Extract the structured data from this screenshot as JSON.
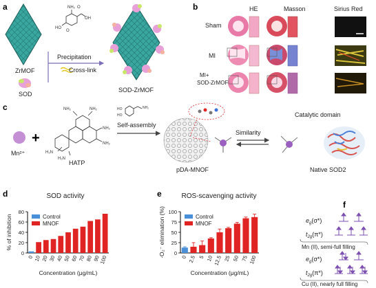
{
  "panels": {
    "a": {
      "letter": "a",
      "zrmof_label": "ZrMOF",
      "sod_label": "SOD",
      "product_label": "SOD-ZrMOF",
      "arrow_top": "Precipitation",
      "arrow_bottom": "Cross-link",
      "molecule": {
        "nh2": "NH₂",
        "oh_top": "O",
        "oh_right": "OH",
        "ho_left": "HO",
        "o_bottom": "O"
      }
    },
    "b": {
      "letter": "b",
      "columns": [
        "HE",
        "Masson",
        "Sirius Red"
      ],
      "rows": [
        "Sham",
        "MI",
        "MI+",
        "SOD-ZrMOF"
      ]
    },
    "c": {
      "letter": "c",
      "metal": "Mn²⁺",
      "plus": "+",
      "ligand": "HATP",
      "amines": [
        "NH₂",
        "NH₂",
        "NH₂",
        "H₂N",
        "H₂N",
        "NH₂"
      ],
      "dopamine_ho": [
        "HO",
        "HO"
      ],
      "dopamine_nh2": "NH₂",
      "step1": "Self-assembly",
      "product": "pDA-MNOF",
      "similarity": "Similarity",
      "catalytic": "Catalytic domain",
      "native": "Native SOD2"
    },
    "f": {
      "letter": "f",
      "eg": "e",
      "eg_sub": "g",
      "eg_sym": "(σ*)",
      "t2g": "t",
      "t2g_sub": "2g",
      "t2g_sym": "(π*)",
      "mn_caption": "Mn (II), semi-full filling",
      "cu_caption": "Cu (II), nearly full filling"
    }
  },
  "chart_data": [
    {
      "id": "d",
      "letter": "d",
      "type": "bar",
      "title": "SOD activity",
      "xlabel": "Concentration (μg/mL)",
      "ylabel": "% of inhibition",
      "ylim": [
        0,
        80
      ],
      "yticks": [
        "0",
        "20",
        "40",
        "60",
        "80"
      ],
      "categories": [
        "0",
        "10",
        "20",
        "30",
        "40",
        "50",
        "60",
        "70",
        "80",
        "90",
        "100"
      ],
      "legend": [
        {
          "name": "Control",
          "color": "#4a90d9"
        },
        {
          "name": "MNOF",
          "color": "#e02424"
        }
      ],
      "legend_position": "top-left",
      "series": [
        {
          "name": "Control",
          "color": "#4a90d9",
          "values": [
            3,
            null,
            null,
            null,
            null,
            null,
            null,
            null,
            null,
            null,
            null
          ]
        },
        {
          "name": "MNOF",
          "color": "#e02424",
          "values": [
            null,
            21,
            25,
            27,
            33,
            40,
            47,
            51,
            62,
            65,
            76
          ]
        }
      ]
    },
    {
      "id": "e",
      "letter": "e",
      "type": "bar",
      "title": "ROS-scavenging activity",
      "xlabel": "Concentration (μg/mL)",
      "ylabel": "·O₂⁻ elimination (%)",
      "ylim": [
        0,
        100
      ],
      "yticks": [
        "0",
        "25",
        "50",
        "75",
        "100"
      ],
      "categories": [
        "0",
        "2.5",
        "5",
        "10",
        "12.5",
        "25",
        "50",
        "75",
        "100"
      ],
      "legend": [
        {
          "name": "Control",
          "color": "#4a90d9"
        },
        {
          "name": "MNOF",
          "color": "#e02424"
        }
      ],
      "legend_position": "top-left",
      "series": [
        {
          "name": "Control",
          "color": "#4a90d9",
          "values": [
            13,
            null,
            null,
            null,
            null,
            null,
            null,
            null,
            null
          ],
          "errors": [
            2,
            0,
            0,
            0,
            0,
            0,
            0,
            0,
            0
          ]
        },
        {
          "name": "MNOF",
          "color": "#e02424",
          "values": [
            null,
            15,
            19,
            35,
            50,
            60,
            71,
            84,
            87
          ],
          "errors": [
            0,
            10,
            10,
            2,
            8,
            2,
            3,
            3,
            7
          ]
        }
      ]
    }
  ]
}
